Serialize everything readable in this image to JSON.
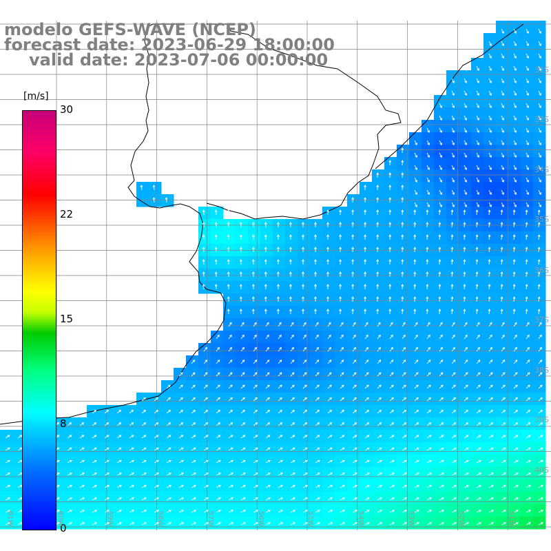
{
  "header": {
    "line1": "modelo GEFS-WAVE (NCEP)",
    "line2": "forecast date: 2023-06-29 18:00:00",
    "line3": "valid date: 2023-07-06 00:00:00"
  },
  "colorbar": {
    "unit": "[m/s]",
    "ticks": [
      "30",
      "22",
      "15",
      "8",
      "0"
    ]
  },
  "grid": {
    "lat_labels": [
      "32S",
      "33S",
      "34S",
      "35S",
      "36S",
      "37S",
      "38S",
      "39S",
      "40S"
    ],
    "lon_labels": [
      "61W",
      "60W",
      "59W",
      "58W",
      "57W",
      "56W",
      "55W",
      "54W",
      "53W",
      "52W",
      "51W"
    ]
  },
  "colors": {
    "land": "#ffffff",
    "grid": "#808080",
    "coast": "#000000",
    "arrows": "#ffffff"
  }
}
